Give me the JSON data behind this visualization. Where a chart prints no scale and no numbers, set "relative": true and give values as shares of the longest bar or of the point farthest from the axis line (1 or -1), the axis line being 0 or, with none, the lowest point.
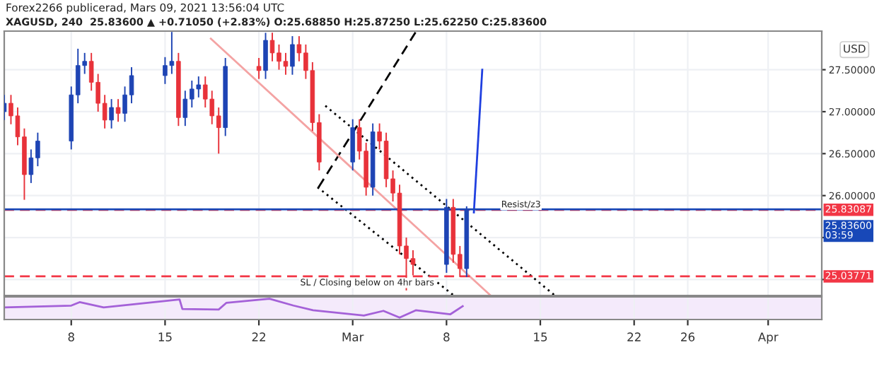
{
  "chart_data": [
    {
      "type": "candlestick",
      "title": "Forex2266 publicerad, Mars 09, 2021 13:56:04 UTC",
      "subtitle": "XAGUSD, 240  25.83600 ▲ +0.71050 (+2.83%) O:25.68850 H:25.87250 L:25.62250 C:25.83600",
      "ylabel": "USD",
      "x": [
        "2021-02-03T00:00",
        "2021-02-03T12:00",
        "2021-02-04T00:00",
        "2021-02-04T12:00",
        "2021-02-05T00:00",
        "2021-02-05T12:00",
        "2021-02-08T00:00",
        "2021-02-08T12:00",
        "2021-02-09T00:00",
        "2021-02-09T12:00",
        "2021-02-10T00:00",
        "2021-02-10T12:00",
        "2021-02-11T00:00",
        "2021-02-11T12:00",
        "2021-02-12T00:00",
        "2021-02-12T12:00",
        "2021-02-15T00:00",
        "2021-02-15T12:00",
        "2021-02-16T00:00",
        "2021-02-16T12:00",
        "2021-02-17T00:00",
        "2021-02-17T12:00",
        "2021-02-18T00:00",
        "2021-02-18T12:00",
        "2021-02-19T00:00",
        "2021-02-19T12:00",
        "2021-02-22T00:00",
        "2021-02-22T12:00",
        "2021-02-23T00:00",
        "2021-02-23T12:00",
        "2021-02-24T00:00",
        "2021-02-24T12:00",
        "2021-02-25T00:00",
        "2021-02-25T12:00",
        "2021-02-26T00:00",
        "2021-02-26T12:00",
        "2021-03-01T00:00",
        "2021-03-01T12:00",
        "2021-03-02T00:00",
        "2021-03-02T12:00",
        "2021-03-03T00:00",
        "2021-03-03T12:00",
        "2021-03-04T00:00",
        "2021-03-04T12:00",
        "2021-03-05T00:00",
        "2021-03-05T12:00",
        "2021-03-08T00:00",
        "2021-03-08T12:00",
        "2021-03-09T00:00",
        "2021-03-09T12:00"
      ],
      "ohlc": [
        [
          27.0,
          27.2,
          26.9,
          27.1
        ],
        [
          27.1,
          27.2,
          26.85,
          26.95
        ],
        [
          26.95,
          27.05,
          26.6,
          26.7
        ],
        [
          26.7,
          26.8,
          25.95,
          26.25
        ],
        [
          26.25,
          26.55,
          26.15,
          26.45
        ],
        [
          26.45,
          26.75,
          26.35,
          26.65
        ],
        [
          26.65,
          27.3,
          26.55,
          27.2
        ],
        [
          27.2,
          27.75,
          27.1,
          27.55
        ],
        [
          27.55,
          27.7,
          27.45,
          27.6
        ],
        [
          27.6,
          27.7,
          27.25,
          27.35
        ],
        [
          27.35,
          27.45,
          27.0,
          27.1
        ],
        [
          27.1,
          27.2,
          26.8,
          26.9
        ],
        [
          26.9,
          27.15,
          26.8,
          27.05
        ],
        [
          27.05,
          27.15,
          26.88,
          26.98
        ],
        [
          26.98,
          27.3,
          26.88,
          27.2
        ],
        [
          27.2,
          27.53,
          27.1,
          27.43
        ],
        [
          27.43,
          27.65,
          27.33,
          27.55
        ],
        [
          27.55,
          27.95,
          27.45,
          27.6
        ],
        [
          27.6,
          27.7,
          26.83,
          26.93
        ],
        [
          26.93,
          27.25,
          26.83,
          27.15
        ],
        [
          27.15,
          27.37,
          27.05,
          27.27
        ],
        [
          27.27,
          27.42,
          27.17,
          27.32
        ],
        [
          27.32,
          27.42,
          27.05,
          27.15
        ],
        [
          27.15,
          27.25,
          26.85,
          26.95
        ],
        [
          26.95,
          27.05,
          26.5,
          26.81
        ],
        [
          26.81,
          27.64,
          26.71,
          27.54
        ],
        [
          27.54,
          27.64,
          27.39,
          27.49
        ],
        [
          27.49,
          27.94,
          27.39,
          27.85
        ],
        [
          27.85,
          27.94,
          27.6,
          27.7
        ],
        [
          27.7,
          27.8,
          27.5,
          27.6
        ],
        [
          27.6,
          27.7,
          27.44,
          27.54
        ],
        [
          27.54,
          27.9,
          27.44,
          27.8
        ],
        [
          27.8,
          27.9,
          27.6,
          27.7
        ],
        [
          27.7,
          27.8,
          27.39,
          27.49
        ],
        [
          27.49,
          27.59,
          26.77,
          26.87
        ],
        [
          26.87,
          26.97,
          26.3,
          26.4
        ],
        [
          26.4,
          26.91,
          26.3,
          26.81
        ],
        [
          26.81,
          26.91,
          26.43,
          26.53
        ],
        [
          26.53,
          26.63,
          26.0,
          26.1
        ],
        [
          26.1,
          26.86,
          26.0,
          26.76
        ],
        [
          26.76,
          26.86,
          26.55,
          26.65
        ],
        [
          26.65,
          26.75,
          26.1,
          26.2
        ],
        [
          26.2,
          26.3,
          25.93,
          26.03
        ],
        [
          26.03,
          26.13,
          25.3,
          25.4
        ],
        [
          25.4,
          25.5,
          24.87,
          25.25
        ],
        [
          25.25,
          25.35,
          25.05,
          25.18
        ],
        [
          25.18,
          25.96,
          25.08,
          25.86
        ],
        [
          25.86,
          25.96,
          25.2,
          25.3
        ],
        [
          25.3,
          25.4,
          25.03,
          25.13
        ],
        [
          25.13,
          25.8725,
          25.03,
          25.836
        ]
      ],
      "colors": [
        "#1e44b4",
        "#e8323a",
        "#e8323a",
        "#e8323a",
        "#1e44b4",
        "#1e44b4",
        "#1e44b4",
        "#1e44b4",
        "#1e44b4",
        "#e8323a",
        "#e8323a",
        "#e8323a",
        "#1e44b4",
        "#e8323a",
        "#1e44b4",
        "#1e44b4",
        "#1e44b4",
        "#1e44b4",
        "#e8323a",
        "#1e44b4",
        "#1e44b4",
        "#1e44b4",
        "#e8323a",
        "#e8323a",
        "#e8323a",
        "#1e44b4",
        "#e8323a",
        "#1e44b4",
        "#e8323a",
        "#e8323a",
        "#e8323a",
        "#1e44b4",
        "#e8323a",
        "#e8323a",
        "#e8323a",
        "#e8323a",
        "#1e44b4",
        "#e8323a",
        "#e8323a",
        "#1e44b4",
        "#e8323a",
        "#e8323a",
        "#e8323a",
        "#e8323a",
        "#e8323a",
        "#e8323a",
        "#1e44b4",
        "#e8323a",
        "#e8323a",
        "#1e44b4"
      ],
      "series": [
        {
          "type": "line",
          "x": [
            "2021-02-26T11:00",
            "2021-03-05T17:00"
          ],
          "values": [
            26.1,
            27.95
          ],
          "color": "#000000",
          "line_style": "dashed"
        },
        {
          "type": "line",
          "x": [
            "2021-02-26T23:00",
            "2021-03-16T02:00"
          ],
          "values": [
            27.07,
            24.81
          ],
          "color": "#000000",
          "line_style": "dotted"
        },
        {
          "type": "line",
          "x": [
            "2021-02-26T09:00",
            "2021-03-08T13:00"
          ],
          "values": [
            26.1,
            24.81
          ],
          "color": "#000000",
          "line_style": "dotted"
        },
        {
          "type": "line",
          "x": [
            "2021-02-18T10:00",
            "2021-03-11T07:00"
          ],
          "values": [
            27.87,
            24.81
          ],
          "color": "#f4a3a3",
          "line_style": "solid"
        },
        {
          "type": "line",
          "x": [
            "2021-03-10T01:00",
            "2021-03-10T16:00"
          ],
          "values": [
            25.8,
            27.5
          ],
          "color": "#1f3fe0",
          "line_style": "solid"
        }
      ],
      "ref_lines": [
        {
          "axis": "y",
          "value": 25.83087,
          "label": "25.83087",
          "color": "#f23645",
          "line_style": "dashed"
        },
        {
          "axis": "y",
          "value": 25.836,
          "label": "25.83600\n03:59",
          "color": "#1848b8",
          "line_style": "solid"
        },
        {
          "axis": "y",
          "value": 25.03771,
          "label": "25.03771",
          "color": "#f23645",
          "line_style": "dashed"
        }
      ],
      "annotations": [
        {
          "text": "Resist/z3",
          "x": "2021-03-12T02:00",
          "y": 25.89
        },
        {
          "text": "SL / Closing below on 4hr bars",
          "x": "2021-02-25T02:00",
          "y": 24.96
        }
      ],
      "xlim": [
        "2021-02-03T00:00",
        "2021-04-05T00:00"
      ],
      "xticks": [
        {
          "value": "2021-02-08",
          "label": null
        },
        {
          "value": "2021-02-15",
          "label": null
        },
        {
          "value": "2021-02-22",
          "label": null
        },
        {
          "value": "2021-03-01",
          "label": null
        },
        {
          "value": "2021-03-08",
          "label": null
        },
        {
          "value": "2021-03-15",
          "label": null
        },
        {
          "value": "2021-03-22",
          "label": null
        },
        {
          "value": "2021-03-26",
          "label": null
        },
        {
          "value": "2021-04-01",
          "label": null
        }
      ],
      "ylim": [
        24.81,
        27.96
      ],
      "yticks": [
        {
          "value": 25.0,
          "label": null
        },
        {
          "value": 25.5,
          "label": null
        },
        {
          "value": 26.0,
          "label": "26.00000"
        },
        {
          "value": 26.5,
          "label": "26.50000"
        },
        {
          "value": 27.0,
          "label": "27.00000"
        },
        {
          "value": 27.5,
          "label": "27.50000"
        }
      ],
      "grid": true,
      "tick_labels": "y"
    },
    {
      "type": "line",
      "relative": true,
      "series": [
        {
          "color": "#a461d8",
          "x": [
            "2021-02-03T00:00",
            "2021-02-08T00:00",
            "2021-02-08T15:00",
            "2021-02-10T10:00",
            "2021-02-15T02:00",
            "2021-02-16T02:00",
            "2021-02-16T07:00",
            "2021-02-19T00:00",
            "2021-02-19T14:00",
            "2021-02-22T19:00",
            "2021-02-24T14:00",
            "2021-02-26T01:00",
            "2021-03-01T20:00",
            "2021-03-03T07:00",
            "2021-03-04T12:00",
            "2021-03-05T17:00",
            "2021-03-08T07:00",
            "2021-03-09T05:00"
          ],
          "values": [
            0.54,
            0.64,
            0.82,
            0.54,
            0.89,
            0.96,
            0.46,
            0.43,
            0.79,
            1.0,
            0.64,
            0.39,
            0.11,
            0.36,
            0.0,
            0.39,
            0.18,
            0.61
          ]
        }
      ],
      "xlim": [
        "2021-02-03T00:00",
        "2021-04-05T00:00"
      ],
      "xticks": [
        {
          "value": "2021-02-08",
          "label": "8"
        },
        {
          "value": "2021-02-15",
          "label": "15"
        },
        {
          "value": "2021-02-22",
          "label": "22"
        },
        {
          "value": "2021-03-01",
          "label": "Mar"
        },
        {
          "value": "2021-03-08",
          "label": "8"
        },
        {
          "value": "2021-03-15",
          "label": "15"
        },
        {
          "value": "2021-03-22",
          "label": "22"
        },
        {
          "value": "2021-03-26",
          "label": "26"
        },
        {
          "value": "2021-04-01",
          "label": "Apr"
        }
      ],
      "grid": "x",
      "tick_labels": "x"
    }
  ]
}
